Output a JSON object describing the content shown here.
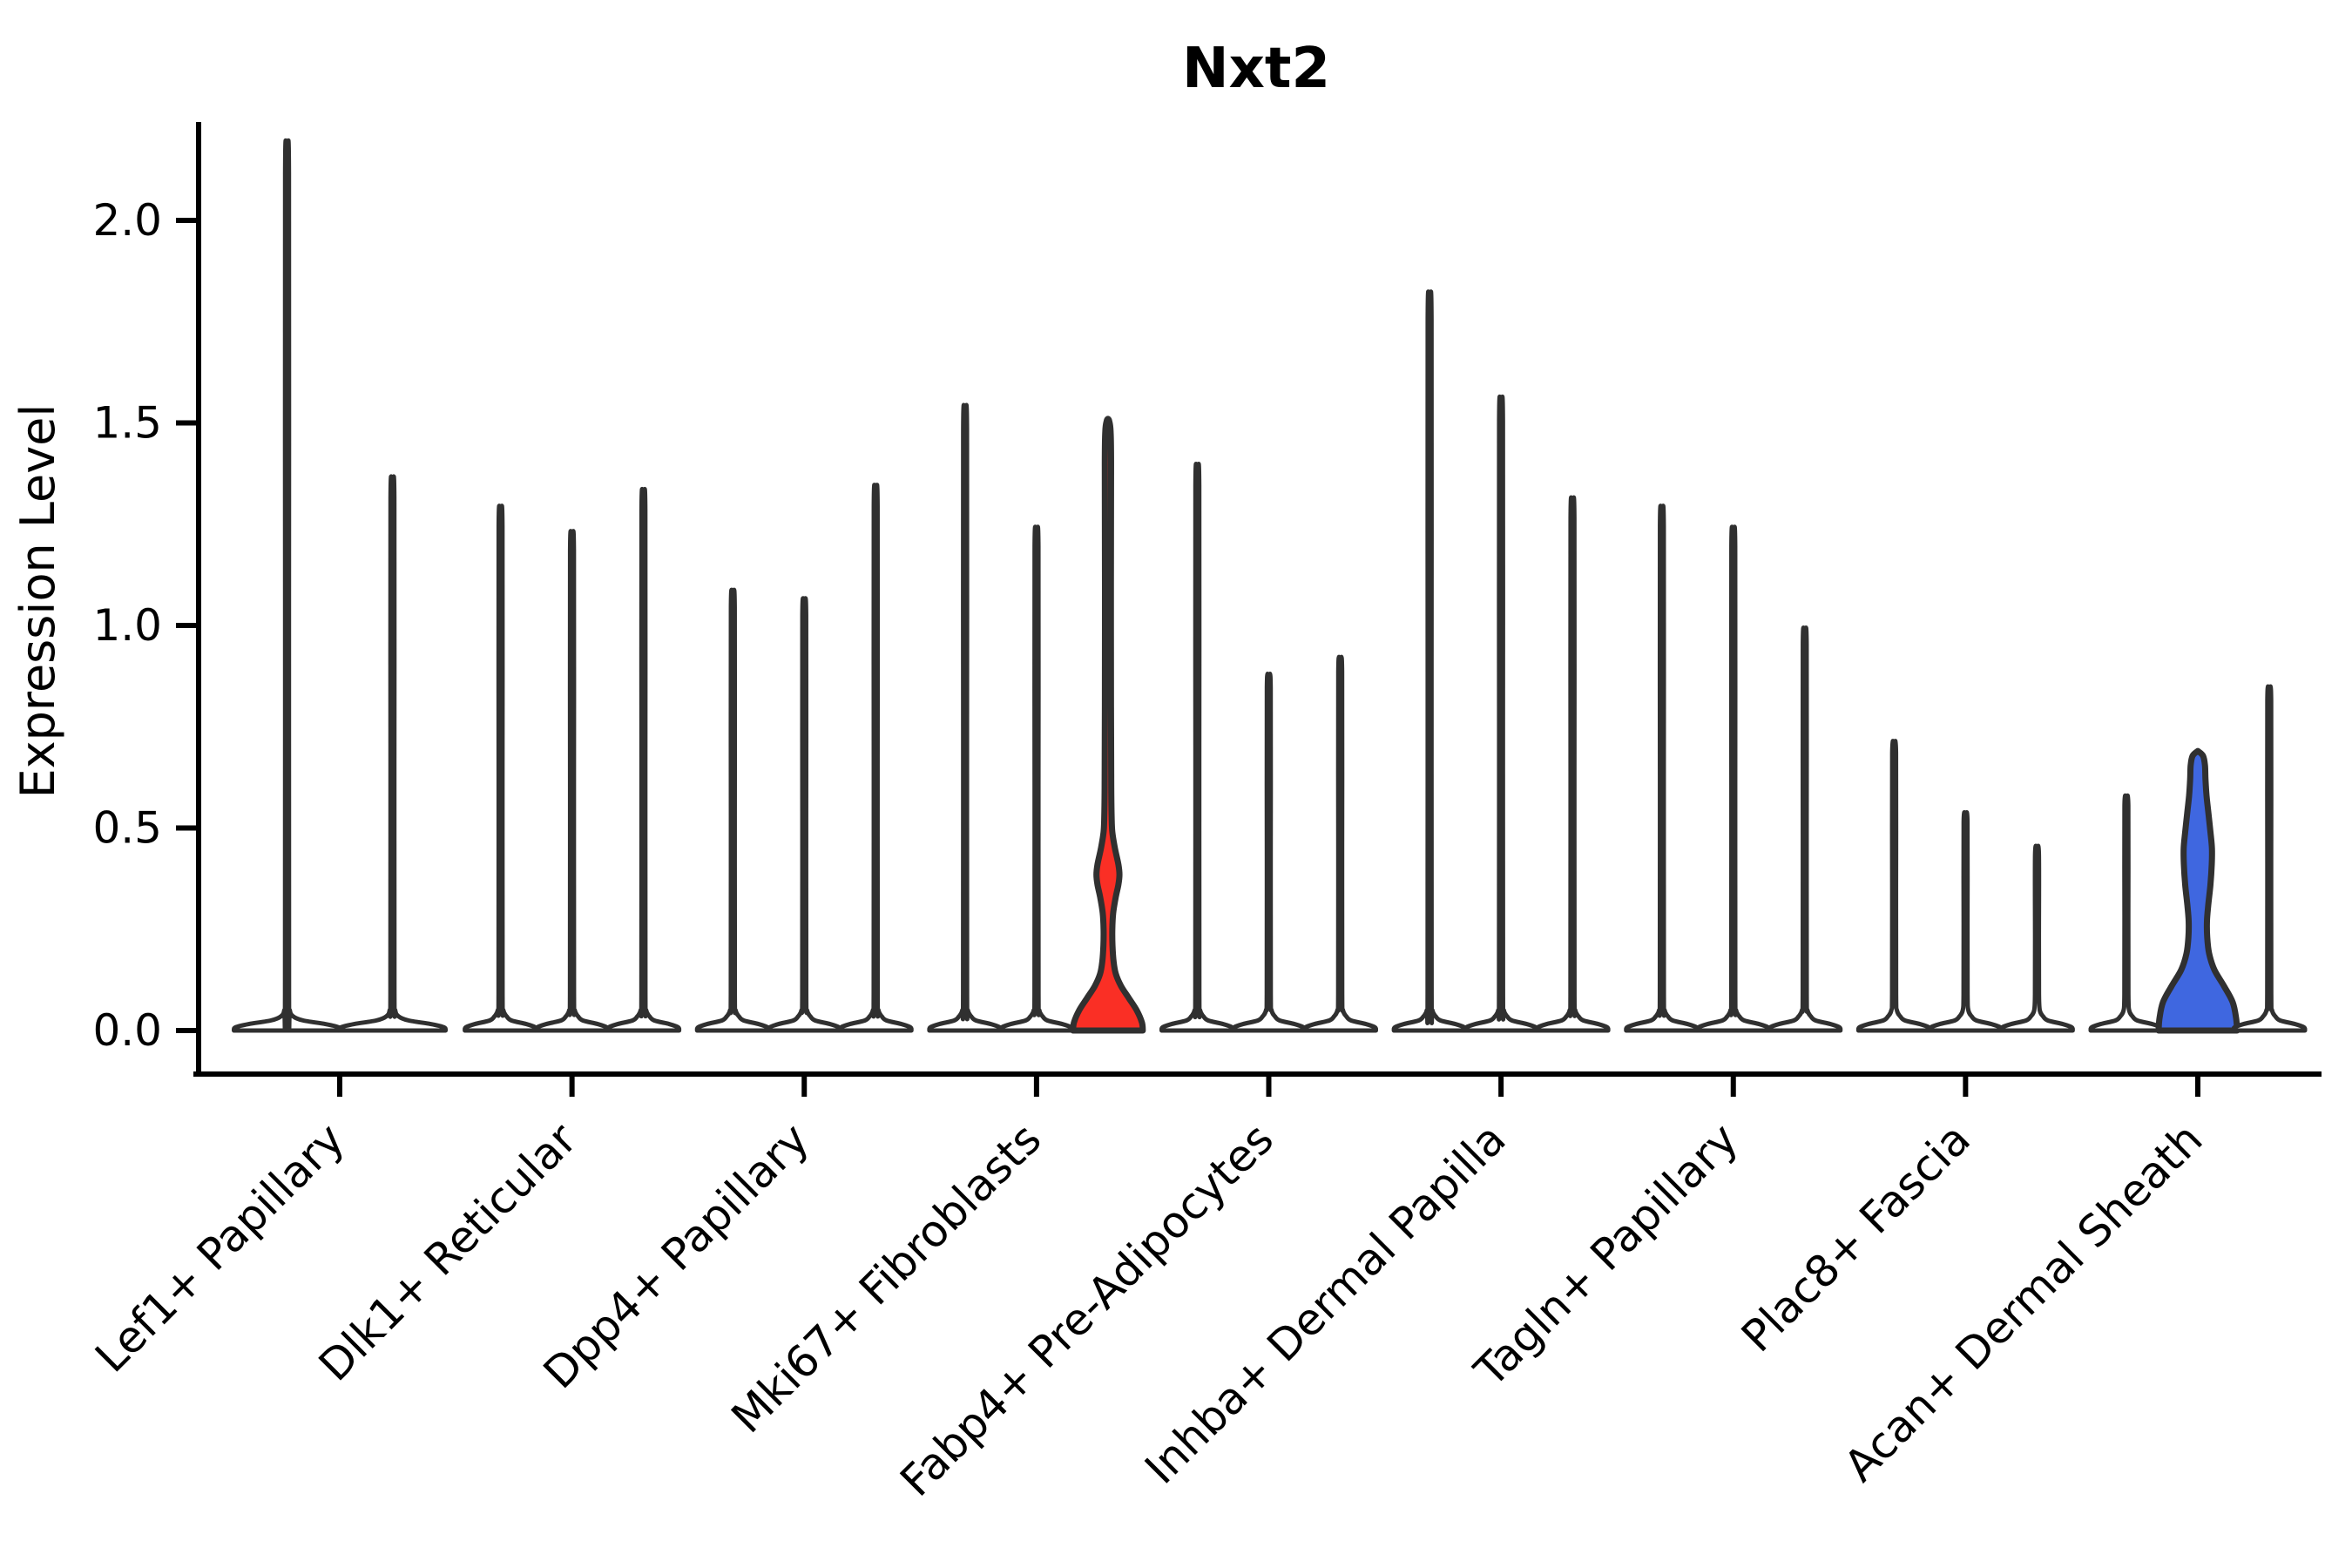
{
  "title": "Nxt2",
  "y_axis": {
    "label": "Expression Level",
    "tick_labels": [
      "0.0",
      "0.5",
      "1.0",
      "1.5",
      "2.0"
    ],
    "tick_values": [
      0.0,
      0.5,
      1.0,
      1.5,
      2.0
    ]
  },
  "colors": {
    "background": "#ffffff",
    "axis": "#000000",
    "violin_outline": "#303030",
    "violin_dark_fill": "#3a3a3a",
    "highlight_red": "#fa2f25",
    "highlight_blue": "#3f67e0"
  },
  "chart_data": {
    "type": "violin",
    "title": "Nxt2",
    "xlabel": "",
    "ylabel": "Expression Level",
    "ylim": [
      0,
      2.25
    ],
    "grid": false,
    "legend": "none",
    "categories": [
      "Lef1+ Papillary",
      "Dlk1+ Reticular",
      "Dpp4+ Papillary",
      "Mki67+ Fibroblasts",
      "Fabp4+ Pre-Adipocytes",
      "Inhba+ Dermal Papilla",
      "Tagln+ Papillary",
      "Plac8+ Fascia",
      "Acan+ Dermal Sheath"
    ],
    "description": "Each group shows 2-3 violins of expression; nearly all collapse to a spike at 0 with a thin line to the max expression value. One violin in Mki67+ Fibroblasts is filled red, one in Acan+ Dermal Sheath is filled blue.",
    "groups": [
      {
        "label": "Lef1+ Papillary",
        "violins": [
          {
            "max": 2.13
          },
          {
            "max": 1.33
          }
        ]
      },
      {
        "label": "Dlk1+ Reticular",
        "violins": [
          {
            "max": 1.26
          },
          {
            "max": 1.2
          },
          {
            "max": 1.3
          }
        ]
      },
      {
        "label": "Dpp4+ Papillary",
        "violins": [
          {
            "max": 1.06
          },
          {
            "max": 1.04
          },
          {
            "max": 1.31
          }
        ]
      },
      {
        "label": "Mki67+ Fibroblasts",
        "violins": [
          {
            "max": 1.5
          },
          {
            "max": 1.21
          },
          {
            "max": 1.51,
            "fill": "#fa2f25",
            "profile": "red_violin"
          }
        ]
      },
      {
        "label": "Fabp4+ Pre-Adipocytes",
        "violins": [
          {
            "max": 1.36
          },
          {
            "max": 0.86
          },
          {
            "max": 0.9
          }
        ]
      },
      {
        "label": "Inhba+ Dermal Papilla",
        "violins": [
          {
            "max": 1.77
          },
          {
            "max": 1.52
          },
          {
            "max": 1.28
          }
        ]
      },
      {
        "label": "Tagln+ Papillary",
        "violins": [
          {
            "max": 1.26
          },
          {
            "max": 1.21
          },
          {
            "max": 0.97
          }
        ]
      },
      {
        "label": "Plac8+ Fascia",
        "violins": [
          {
            "max": 0.7
          },
          {
            "max": 0.53
          },
          {
            "max": 0.45
          }
        ]
      },
      {
        "label": "Acan+ Dermal Sheath",
        "violins": [
          {
            "max": 0.57
          },
          {
            "max": 0.69,
            "fill": "#3f67e0",
            "profile": "blue_violin"
          },
          {
            "max": 0.83
          }
        ]
      }
    ],
    "density_profiles": {
      "red_violin": [
        [
          0.0,
          40
        ],
        [
          0.02,
          39
        ],
        [
          0.05,
          33
        ],
        [
          0.08,
          24
        ],
        [
          0.11,
          15
        ],
        [
          0.14,
          9
        ],
        [
          0.17,
          6.5
        ],
        [
          0.21,
          5.2
        ],
        [
          0.25,
          5.0
        ],
        [
          0.29,
          6.0
        ],
        [
          0.33,
          9.0
        ],
        [
          0.36,
          12.0
        ],
        [
          0.385,
          13.2
        ],
        [
          0.41,
          12.0
        ],
        [
          0.45,
          8.0
        ],
        [
          0.49,
          5.0
        ],
        [
          0.53,
          4.2
        ],
        [
          0.6,
          3.8
        ],
        [
          0.8,
          3.5
        ],
        [
          1.1,
          3.4
        ],
        [
          1.4,
          3.6
        ],
        [
          1.48,
          3.0
        ],
        [
          1.505,
          1.4
        ],
        [
          1.51,
          0.1
        ]
      ],
      "blue_violin": [
        [
          0.0,
          45
        ],
        [
          0.03,
          44
        ],
        [
          0.07,
          40
        ],
        [
          0.11,
          30
        ],
        [
          0.15,
          19
        ],
        [
          0.19,
          13
        ],
        [
          0.23,
          10.8
        ],
        [
          0.27,
          10.5
        ],
        [
          0.31,
          12.0
        ],
        [
          0.36,
          14.5
        ],
        [
          0.41,
          16.0
        ],
        [
          0.45,
          16.2
        ],
        [
          0.49,
          14.5
        ],
        [
          0.54,
          12.0
        ],
        [
          0.58,
          10.0
        ],
        [
          0.62,
          8.8
        ],
        [
          0.655,
          8.2
        ],
        [
          0.678,
          6.0
        ],
        [
          0.69,
          0.1
        ]
      ]
    }
  }
}
